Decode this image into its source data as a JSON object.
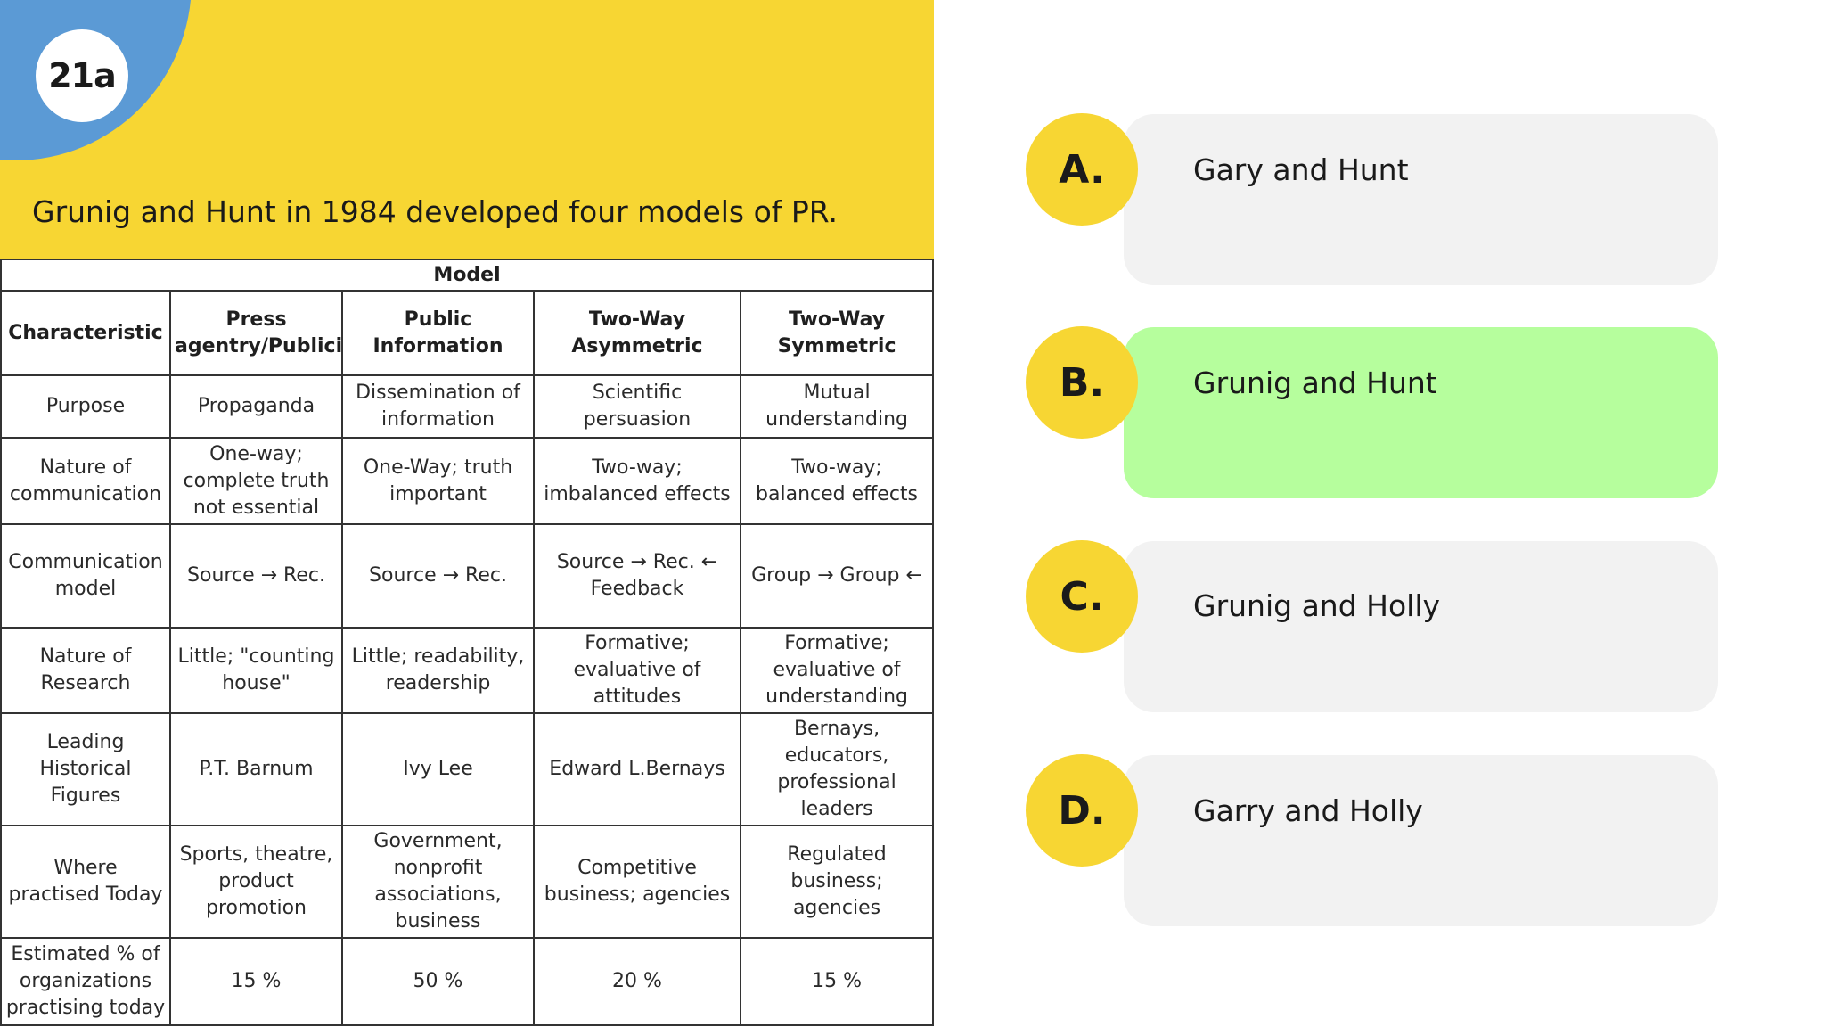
{
  "slide": {
    "badge": "21a",
    "question": "Grunig and Hunt in 1984 developed four models of PR."
  },
  "table": {
    "title": "Model",
    "columns": [
      "Characteristic",
      "Press agentry/Publicity",
      "Public Information",
      "Two-Way Asymmetric",
      "Two-Way Symmetric"
    ],
    "rows": [
      [
        "Purpose",
        "Propaganda",
        "Dissemination of information",
        "Scientific persuasion",
        "Mutual understanding"
      ],
      [
        "Nature of communication",
        "One-way; complete truth not essential",
        "One-Way; truth important",
        "Two-way; imbalanced effects",
        "Two-way; balanced effects"
      ],
      [
        "Communication model",
        "Source → Rec.",
        "Source → Rec.",
        "Source → Rec. ← Feedback",
        "Group → Group ←"
      ],
      [
        "Nature of Research",
        "Little; \"counting house\"",
        "Little; readability, readership",
        "Formative; evaluative of attitudes",
        "Formative; evaluative of understanding"
      ],
      [
        "Leading Historical Figures",
        "P.T. Barnum",
        "Ivy Lee",
        "Edward L.Bernays",
        "Bernays, educators, professional leaders"
      ],
      [
        "Where practised Today",
        "Sports, theatre, product promotion",
        "Government, nonprofit associations, business",
        "Competitive business; agencies",
        "Regulated business; agencies"
      ],
      [
        "Estimated % of organizations practising today",
        "15 %",
        "50 %",
        "20 %",
        "15 %"
      ]
    ]
  },
  "answers": [
    {
      "letter": "A.",
      "text": "Gary and Hunt",
      "correct": false
    },
    {
      "letter": "B.",
      "text": "Grunig and Hunt",
      "correct": true
    },
    {
      "letter": "C.",
      "text": "Grunig and Holly",
      "correct": false
    },
    {
      "letter": "D.",
      "text": "Garry and Holly",
      "correct": false
    }
  ],
  "colors": {
    "panel_yellow": "#f7d633",
    "corner_blue": "#5b9ad5",
    "option_grey": "#f2f2f2",
    "correct_green": "#b6fe9d"
  }
}
